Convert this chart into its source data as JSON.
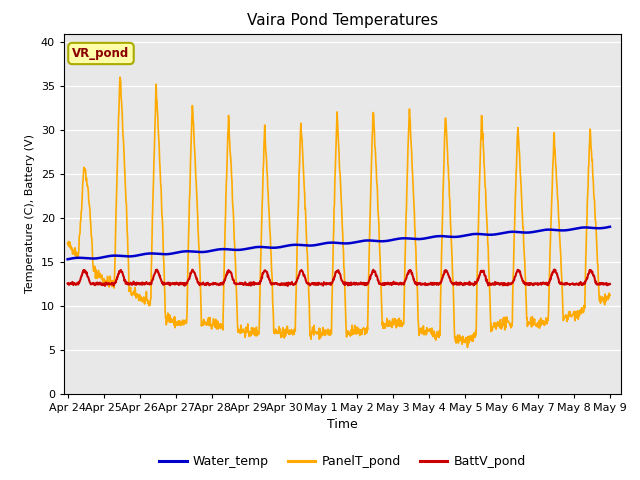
{
  "title": "Vaira Pond Temperatures",
  "xlabel": "Time",
  "ylabel": "Temperature (C), Battery (V)",
  "ylim": [
    0,
    41
  ],
  "background_color": "#e8e8e8",
  "fig_background": "#ffffff",
  "water_temp_color": "#0000cc",
  "panel_temp_color": "#ffaa00",
  "batt_v_color": "#cc0000",
  "annotation_text": "VR_pond",
  "annotation_bg": "#ffffaa",
  "annotation_border": "#aaaa00",
  "tick_dates": [
    "Apr 24",
    "Apr 25",
    "Apr 26",
    "Apr 27",
    "Apr 28",
    "Apr 29",
    "Apr 30",
    "May 1",
    "May 2",
    "May 3",
    "May 4",
    "May 5",
    "May 6",
    "May 7",
    "May 8",
    "May 9"
  ],
  "legend_entries": [
    "Water_temp",
    "PanelT_pond",
    "BattV_pond"
  ]
}
